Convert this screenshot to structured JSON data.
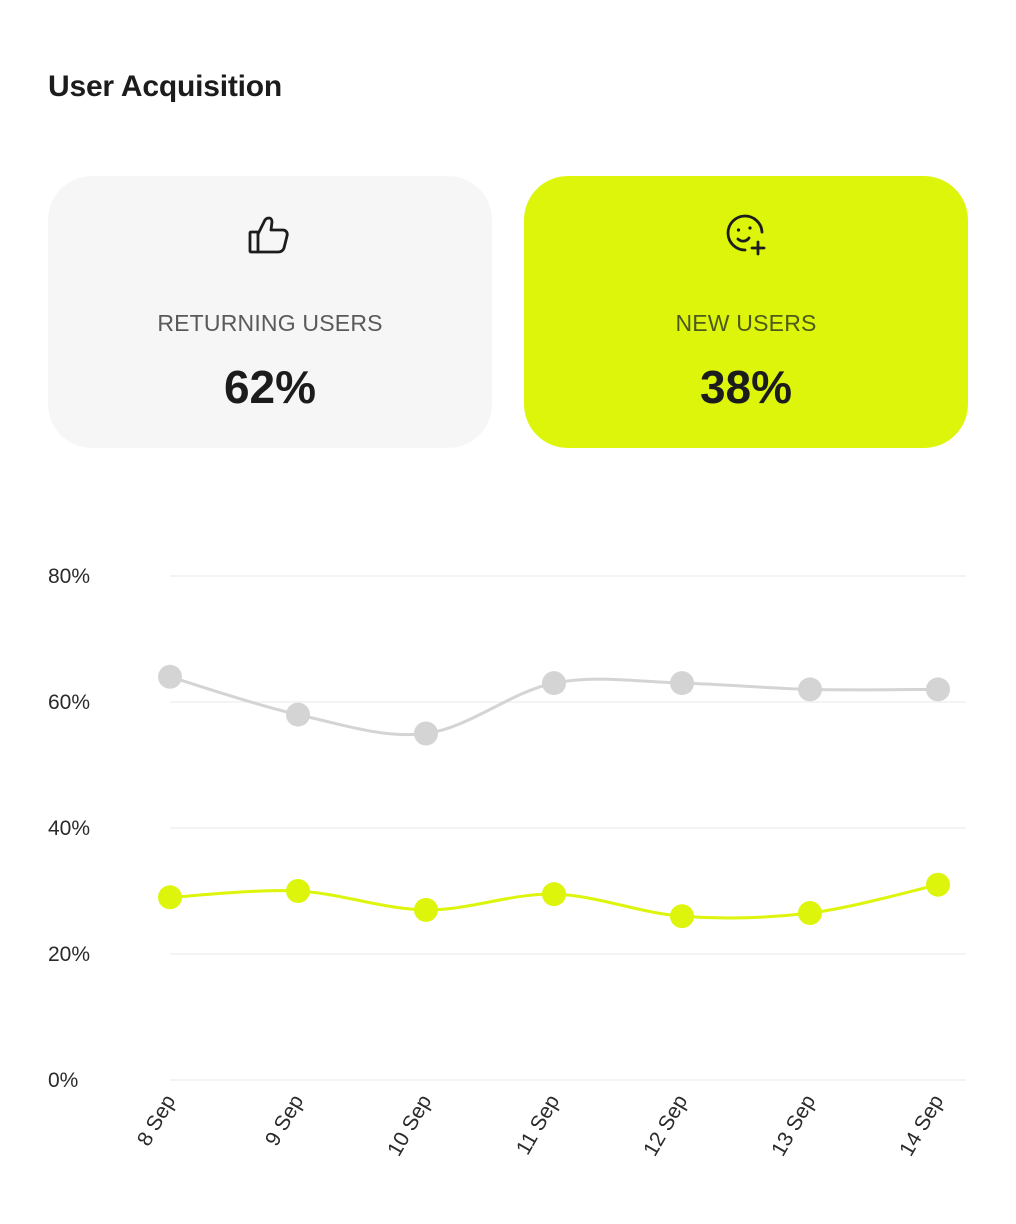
{
  "title": "User Acquisition",
  "cards": {
    "returning": {
      "icon": "thumbs-up-icon",
      "label": "RETURNING USERS",
      "value": "62%",
      "background": "#f6f6f6"
    },
    "new": {
      "icon": "smiley-plus-icon",
      "label": "NEW USERS",
      "value": "38%",
      "background": "#dcf50a"
    }
  },
  "colors": {
    "accent": "#dcf50a",
    "returning_series": "#d4d4d4",
    "new_series": "#dcf50a",
    "grid": "#f0f0f0"
  },
  "chart_data": {
    "type": "line",
    "categories": [
      "8 Sep",
      "9 Sep",
      "10 Sep",
      "11 Sep",
      "12 Sep",
      "13 Sep",
      "14 Sep"
    ],
    "series": [
      {
        "name": "RETURNING USERS",
        "color": "#d4d4d4",
        "values": [
          64,
          58,
          55,
          63,
          63,
          62,
          62
        ]
      },
      {
        "name": "NEW USERS",
        "color": "#dcf50a",
        "values": [
          29,
          30,
          27,
          29.5,
          26,
          26.5,
          31
        ]
      }
    ],
    "yticks": [
      "0%",
      "20%",
      "40%",
      "60%",
      "80%"
    ],
    "ylim": [
      0,
      80
    ],
    "grid": true,
    "curve": "smooth",
    "xlabel_rotation": "diagonal"
  }
}
